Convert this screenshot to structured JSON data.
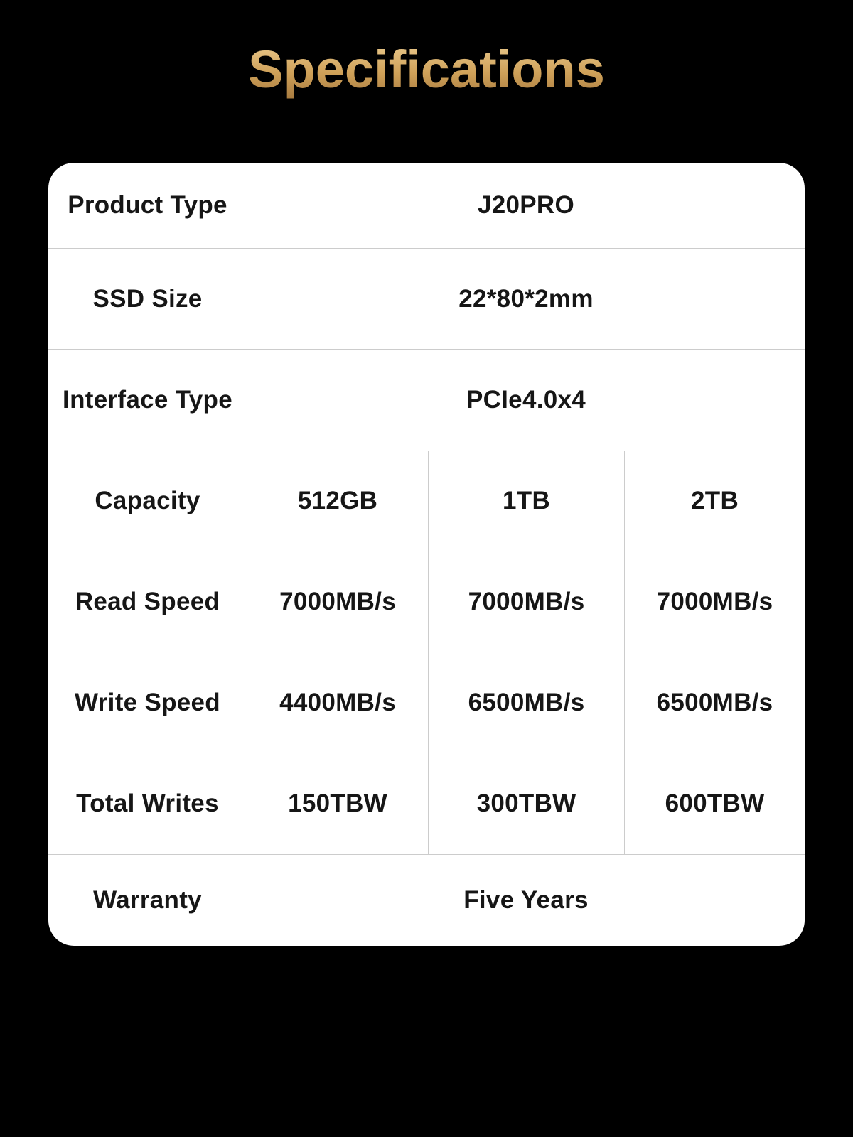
{
  "title": "Specifications",
  "colors": {
    "background": "#000000",
    "table_background": "#ffffff",
    "border": "#cccccc",
    "text": "#161616",
    "gold_light": "#eed096",
    "gold_mid": "#cfa159",
    "gold_dark": "#a3763c"
  },
  "table": {
    "rows": [
      {
        "label": "Product Type",
        "values": [
          "J20PRO"
        ]
      },
      {
        "label": "SSD Size",
        "values": [
          "22*80*2mm"
        ]
      },
      {
        "label": "Interface Type",
        "values": [
          "PCIe4.0x4"
        ]
      },
      {
        "label": "Capacity",
        "values": [
          "512GB",
          "1TB",
          "2TB"
        ]
      },
      {
        "label": "Read Speed",
        "values": [
          "7000MB/s",
          "7000MB/s",
          "7000MB/s"
        ]
      },
      {
        "label": "Write Speed",
        "values": [
          "4400MB/s",
          "6500MB/s",
          "6500MB/s"
        ]
      },
      {
        "label": "Total Writes",
        "values": [
          "150TBW",
          "300TBW",
          "600TBW"
        ]
      },
      {
        "label": "Warranty",
        "values": [
          "Five Years"
        ]
      }
    ]
  }
}
